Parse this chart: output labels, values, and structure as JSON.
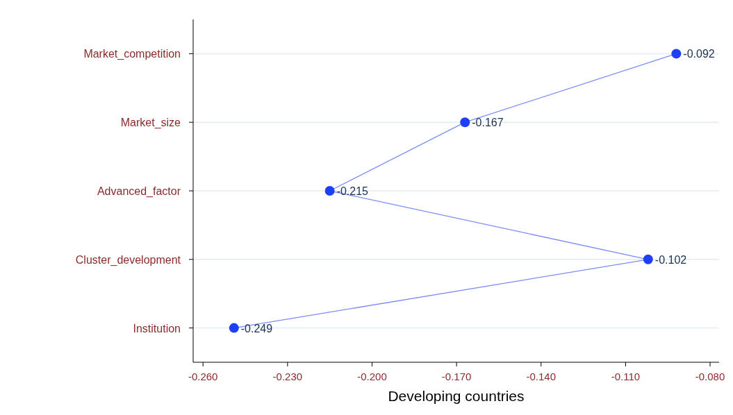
{
  "chart_data": {
    "type": "line",
    "orientation": "horizontal",
    "xlabel": "Developing countries",
    "categories": [
      "Market_competition",
      "Market_size",
      "Advanced_factor",
      "Cluster_development",
      "Institution"
    ],
    "series": [
      {
        "color": "#1f3ff5",
        "values": [
          -0.092,
          -0.167,
          -0.215,
          -0.102,
          -0.249
        ]
      }
    ],
    "xlim": [
      -0.2635,
      -0.0768
    ],
    "xticks": [
      {
        "value": -0.26,
        "label": "-0.260"
      },
      {
        "value": -0.23,
        "label": "-0.230"
      },
      {
        "value": -0.2,
        "label": "-0.200"
      },
      {
        "value": -0.17,
        "label": "-0.170"
      },
      {
        "value": -0.14,
        "label": "-0.140"
      },
      {
        "value": -0.11,
        "label": "-0.110"
      },
      {
        "value": -0.08,
        "label": "-0.080"
      }
    ],
    "data_labels": true,
    "grid": "y",
    "marker": "circle",
    "line_style": "solid"
  }
}
